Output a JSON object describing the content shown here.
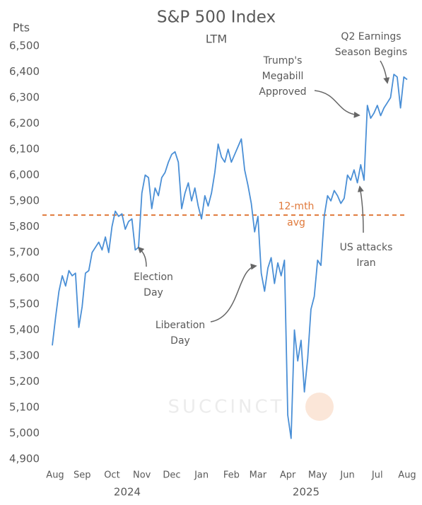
{
  "chart_data": {
    "type": "line",
    "title": "S&P 500 Index",
    "subtitle": "LTM",
    "y_label": "Pts",
    "watermark": "SUCCINCT",
    "categories": [
      "Aug",
      null,
      null,
      null,
      null,
      null,
      null,
      null,
      null,
      "Sep",
      null,
      null,
      null,
      null,
      null,
      null,
      null,
      null,
      "Oct",
      null,
      null,
      null,
      null,
      null,
      null,
      null,
      null,
      "Nov",
      null,
      null,
      null,
      null,
      null,
      null,
      null,
      null,
      "Dec",
      null,
      null,
      null,
      null,
      null,
      null,
      null,
      null,
      "Jan",
      null,
      null,
      null,
      null,
      null,
      null,
      null,
      null,
      "Feb",
      null,
      null,
      null,
      null,
      null,
      null,
      null,
      "Mar",
      null,
      null,
      null,
      null,
      null,
      null,
      null,
      null,
      "Apr",
      null,
      null,
      null,
      null,
      null,
      null,
      null,
      null,
      "May",
      null,
      null,
      null,
      null,
      null,
      null,
      null,
      null,
      "Jun",
      null,
      null,
      null,
      null,
      null,
      null,
      null,
      null,
      "Jul",
      null,
      null,
      null,
      null,
      null,
      null,
      null,
      null,
      "Aug"
    ],
    "years": [
      "2024",
      "2025"
    ],
    "series": [
      {
        "name": "S&P 500",
        "color": "#4a8fd6",
        "values": [
          5340,
          5450,
          5550,
          5610,
          5570,
          5630,
          5610,
          5620,
          5410,
          5490,
          5620,
          5630,
          5700,
          5720,
          5740,
          5710,
          5760,
          5700,
          5800,
          5860,
          5840,
          5850,
          5790,
          5820,
          5830,
          5710,
          5720,
          5930,
          6000,
          5990,
          5870,
          5950,
          5920,
          5990,
          6010,
          6050,
          6080,
          6090,
          6050,
          5870,
          5930,
          5970,
          5900,
          5950,
          5880,
          5830,
          5920,
          5880,
          5930,
          6010,
          6120,
          6070,
          6050,
          6100,
          6050,
          6080,
          6110,
          6140,
          6020,
          5960,
          5890,
          5780,
          5840,
          5620,
          5550,
          5640,
          5680,
          5580,
          5660,
          5610,
          5670,
          5070,
          4980,
          5400,
          5280,
          5360,
          5160,
          5290,
          5480,
          5530,
          5670,
          5650,
          5840,
          5920,
          5900,
          5940,
          5920,
          5890,
          5910,
          6000,
          5980,
          6020,
          5970,
          6040,
          5980,
          6270,
          6220,
          6240,
          6270,
          6230,
          6260,
          6280,
          6300,
          6390,
          6380,
          6260,
          6380,
          6370
        ]
      }
    ],
    "reference_line": {
      "value": 5845,
      "label": [
        "12-mth",
        "avg"
      ],
      "color": "#e0793a"
    },
    "annotations": [
      {
        "text": [
          "Election",
          "Day"
        ]
      },
      {
        "text": [
          "Liberation",
          "Day"
        ]
      },
      {
        "text": [
          "Trump's",
          "Megabill",
          "Approved"
        ]
      },
      {
        "text": [
          "Q2 Earnings",
          "Season Begins"
        ]
      },
      {
        "text": [
          "US attacks",
          "Iran"
        ]
      }
    ],
    "ylim": [
      4900,
      6500
    ],
    "yticks": [
      {
        "value": 4900,
        "label": "4,900"
      },
      {
        "value": 5000,
        "label": "5,000"
      },
      {
        "value": 5100,
        "label": "5,100"
      },
      {
        "value": 5200,
        "label": "5,200"
      },
      {
        "value": 5300,
        "label": "5,300"
      },
      {
        "value": 5400,
        "label": "5,400"
      },
      {
        "value": 5500,
        "label": "5,500"
      },
      {
        "value": 5600,
        "label": "5,600"
      },
      {
        "value": 5700,
        "label": "5,700"
      },
      {
        "value": 5800,
        "label": "5,800"
      },
      {
        "value": 5900,
        "label": "5,900"
      },
      {
        "value": 6000,
        "label": "6,000"
      },
      {
        "value": 6100,
        "label": "6,100"
      },
      {
        "value": 6200,
        "label": "6,200"
      },
      {
        "value": 6300,
        "label": "6,300"
      },
      {
        "value": 6400,
        "label": "6,400"
      },
      {
        "value": 6500,
        "label": "6,500"
      }
    ],
    "grid": false
  }
}
